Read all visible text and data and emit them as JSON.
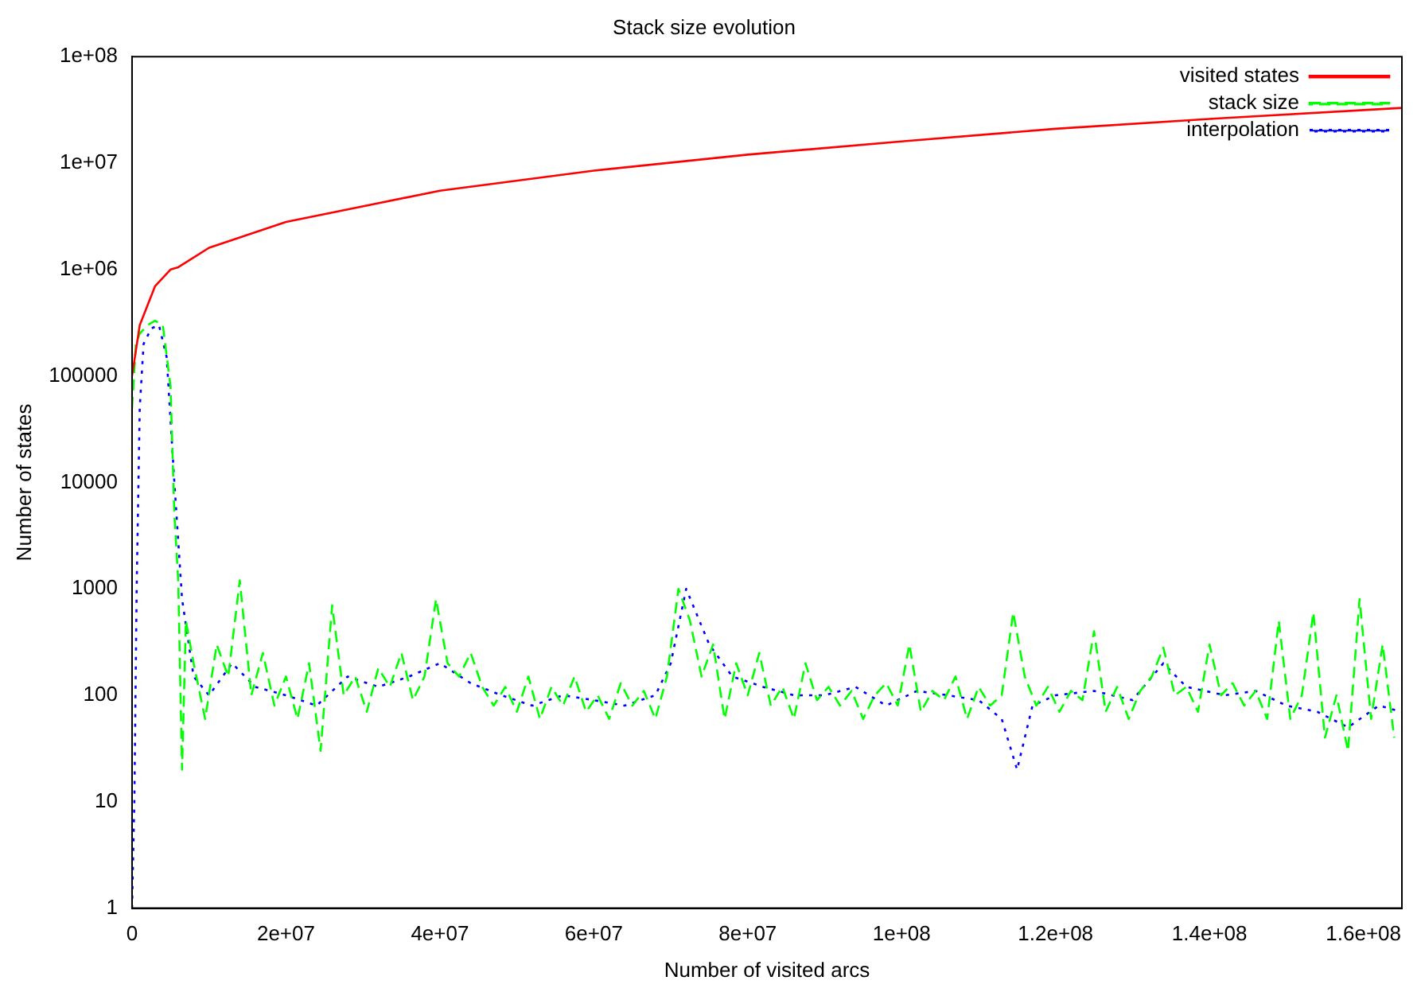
{
  "chart_data": {
    "type": "line",
    "title": "Stack size evolution",
    "xlabel": "Number of visited arcs",
    "ylabel": "Number of states",
    "log": "y",
    "grid": false,
    "legend": "top right",
    "marker": "none",
    "xlim": [
      0,
      165000000
    ],
    "xticks": [
      0,
      {
        "value": 20000000,
        "label": "2e+07"
      },
      {
        "value": 40000000,
        "label": "4e+07"
      },
      {
        "value": 60000000,
        "label": "6e+07"
      },
      {
        "value": 80000000,
        "label": "8e+07"
      },
      {
        "value": 100000000,
        "label": "1e+08"
      },
      {
        "value": 120000000,
        "label": "1.2e+08"
      },
      {
        "value": 140000000,
        "label": "1.4e+08"
      },
      {
        "value": 160000000,
        "label": "1.6e+08"
      }
    ],
    "ylim": [
      1,
      100000000
    ],
    "yticks": [
      1,
      10,
      100,
      1000,
      10000,
      100000,
      {
        "value": 1000000,
        "label": "1e+06"
      },
      {
        "value": 10000000,
        "label": "1e+07"
      },
      {
        "value": 100000000,
        "label": "1e+08"
      }
    ],
    "series": [
      {
        "name": "visited states",
        "color": "#ff0000",
        "line_style": "solid",
        "x": [
          0,
          1000000,
          3000000,
          5000000,
          6000000,
          10000000,
          20000000,
          40000000,
          60000000,
          80000000,
          100000000,
          120000000,
          140000000,
          165000000
        ],
        "values": [
          100000,
          300000,
          700000,
          1000000,
          1050000,
          1600000,
          2800000,
          5500000,
          8500000,
          12000000,
          16000000,
          21000000,
          26000000,
          33000000
        ]
      },
      {
        "name": "stack size",
        "color": "#00ff00",
        "line_style": "dashed",
        "x": [
          0,
          500000,
          1000000,
          2000000,
          3000000,
          4000000,
          5000000,
          5500000,
          6000000,
          6500000,
          7000000,
          8000000,
          9500000,
          11000000,
          12500000,
          14000000,
          15500000,
          17000000,
          18500000,
          20000000,
          21500000,
          23000000,
          24500000,
          26000000,
          27500000,
          29000000,
          30500000,
          32000000,
          33500000,
          35000000,
          36500000,
          38000000,
          39500000,
          41000000,
          42500000,
          44000000,
          45500000,
          47000000,
          48500000,
          50000000,
          51500000,
          53000000,
          54500000,
          56000000,
          57500000,
          59000000,
          60500000,
          62000000,
          63500000,
          65000000,
          66500000,
          68000000,
          69500000,
          71000000,
          72500000,
          74000000,
          75500000,
          77000000,
          78500000,
          80000000,
          81500000,
          83000000,
          84500000,
          86000000,
          87500000,
          89000000,
          90500000,
          92000000,
          93500000,
          95000000,
          96500000,
          98000000,
          99500000,
          101000000,
          102500000,
          104000000,
          105500000,
          107000000,
          108500000,
          110000000,
          111500000,
          113000000,
          114500000,
          116000000,
          117500000,
          119000000,
          120500000,
          122000000,
          123500000,
          125000000,
          126500000,
          128000000,
          129500000,
          131000000,
          132500000,
          134000000,
          135500000,
          137000000,
          138500000,
          140000000,
          141500000,
          143000000,
          144500000,
          146000000,
          147500000,
          149000000,
          150500000,
          152000000,
          153500000,
          155000000,
          156500000,
          158000000,
          159500000,
          161000000,
          162500000,
          164000000
        ],
        "values": [
          50000,
          200000,
          250000,
          300000,
          330000,
          300000,
          80000,
          5000,
          1200,
          20,
          500,
          200,
          60,
          300,
          150,
          1200,
          100,
          250,
          80,
          150,
          60,
          200,
          30,
          700,
          100,
          150,
          70,
          180,
          120,
          250,
          90,
          150,
          800,
          200,
          150,
          250,
          120,
          80,
          120,
          70,
          150,
          60,
          120,
          80,
          150,
          70,
          100,
          60,
          130,
          80,
          110,
          60,
          150,
          1000,
          500,
          150,
          300,
          60,
          200,
          100,
          250,
          80,
          120,
          60,
          200,
          90,
          120,
          80,
          110,
          60,
          100,
          130,
          80,
          300,
          70,
          110,
          90,
          150,
          60,
          120,
          80,
          100,
          600,
          150,
          80,
          120,
          70,
          110,
          90,
          400,
          70,
          120,
          60,
          110,
          150,
          280,
          100,
          120,
          70,
          300,
          100,
          130,
          80,
          110,
          60,
          500,
          60,
          100,
          600,
          40,
          100,
          30,
          800,
          60,
          300,
          40
        ]
      },
      {
        "name": "interpolation",
        "color": "#0000ff",
        "line_style": "dotted",
        "x": [
          0,
          300000,
          600000,
          1000000,
          1500000,
          2500000,
          3500000,
          4500000,
          5500000,
          6500000,
          8000000,
          10000000,
          13000000,
          16000000,
          20000000,
          24000000,
          28000000,
          32000000,
          36000000,
          40000000,
          44000000,
          48000000,
          52000000,
          56000000,
          60000000,
          64000000,
          68000000,
          70000000,
          72000000,
          75000000,
          78000000,
          82000000,
          86000000,
          90000000,
          94000000,
          98000000,
          102000000,
          106000000,
          110000000,
          113000000,
          115000000,
          117000000,
          120000000,
          125000000,
          130000000,
          134000000,
          137000000,
          142000000,
          146000000,
          150000000,
          154000000,
          158000000,
          162000000,
          165000000
        ],
        "values": [
          1,
          10,
          1000,
          50000,
          200000,
          280000,
          300000,
          150000,
          10000,
          800,
          150,
          100,
          200,
          120,
          100,
          80,
          150,
          120,
          150,
          200,
          130,
          100,
          80,
          100,
          90,
          80,
          100,
          200,
          1000,
          300,
          150,
          120,
          100,
          100,
          120,
          80,
          110,
          100,
          90,
          60,
          20,
          80,
          100,
          110,
          90,
          200,
          120,
          100,
          110,
          80,
          70,
          50,
          80,
          70
        ]
      }
    ]
  }
}
